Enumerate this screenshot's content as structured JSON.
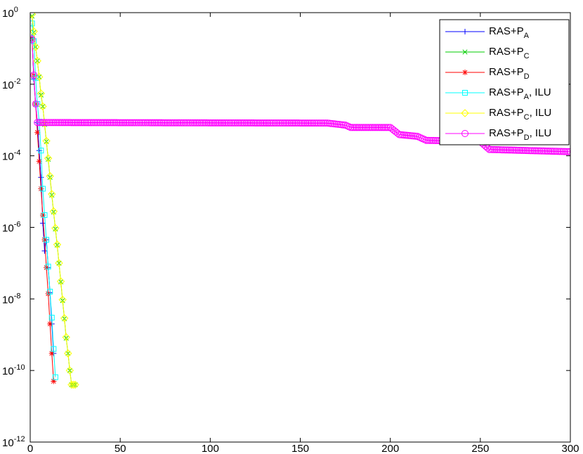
{
  "chart_data": {
    "type": "line",
    "title": "",
    "xlabel": "",
    "ylabel": "",
    "xlim": [
      0,
      300
    ],
    "ylim_exponent": [
      -12,
      0
    ],
    "y_scale": "log",
    "grid": false,
    "legend_position": "top-right",
    "x_ticks": [
      "0",
      "50",
      "100",
      "150",
      "200",
      "250",
      "300"
    ],
    "y_ticks": [
      {
        "base": "10",
        "exp": "0"
      },
      {
        "base": "10",
        "exp": "-2"
      },
      {
        "base": "10",
        "exp": "-4"
      },
      {
        "base": "10",
        "exp": "-6"
      },
      {
        "base": "10",
        "exp": "-8"
      },
      {
        "base": "10",
        "exp": "-10"
      },
      {
        "base": "10",
        "exp": "-12"
      }
    ],
    "series": [
      {
        "name": "RAS+P_A",
        "legend": {
          "main": "RAS+P",
          "sub": "A",
          "suffix": ""
        },
        "color": "#0000ff",
        "marker": "plus",
        "x": [
          1,
          2,
          3,
          4,
          5,
          6,
          7,
          8,
          9,
          10,
          11,
          12,
          13
        ],
        "y": [
          0.2,
          0.014,
          0.0028,
          0.00085,
          0.00014,
          2.5e-05,
          1.3e-06,
          2.2e-07,
          4.5e-07,
          7.5e-08,
          1.5e-08,
          2e-09,
          3e-10
        ]
      },
      {
        "name": "RAS+P_C",
        "legend": {
          "main": "RAS+P",
          "sub": "C",
          "suffix": ""
        },
        "color": "#00cc00",
        "marker": "x",
        "x": [
          1,
          2,
          3,
          4,
          5,
          6,
          7,
          8,
          9,
          10,
          11,
          12,
          13,
          14,
          15,
          16,
          17,
          18,
          19,
          20,
          21,
          22,
          23,
          24,
          25
        ],
        "y": [
          0.8,
          0.28,
          0.11,
          0.045,
          0.016,
          0.005,
          0.0024,
          0.00075,
          0.00025,
          8e-05,
          2.5e-05,
          8e-06,
          2.7e-06,
          9e-07,
          3.2e-07,
          1e-07,
          3e-08,
          9e-09,
          2.8e-09,
          8e-10,
          3e-10,
          1e-10,
          4e-11,
          4e-11,
          4e-11
        ]
      },
      {
        "name": "RAS+P_D",
        "legend": {
          "main": "RAS+P",
          "sub": "D",
          "suffix": ""
        },
        "color": "#ff0000",
        "marker": "star",
        "x": [
          1,
          2,
          3,
          4,
          5,
          6,
          7,
          8,
          9,
          10,
          11,
          12,
          13
        ],
        "y": [
          0.18,
          0.018,
          0.0028,
          0.00045,
          7e-05,
          1.2e-05,
          2.2e-06,
          4.5e-07,
          7.5e-08,
          1.4e-08,
          2e-09,
          3e-10,
          5e-11
        ]
      },
      {
        "name": "RAS+P_A, ILU",
        "legend": {
          "main": "RAS+P",
          "sub": "A",
          "suffix": ", ILU"
        },
        "color": "#00ffff",
        "marker": "square",
        "x": [
          1,
          2,
          3,
          4,
          5,
          6,
          7,
          8,
          9,
          10,
          11,
          12,
          13,
          14
        ],
        "y": [
          0.5,
          0.16,
          0.015,
          0.0028,
          0.0009,
          0.00014,
          1.2e-05,
          2.2e-06,
          4.5e-07,
          8e-08,
          1.6e-08,
          3e-09,
          4e-10,
          6.5e-11
        ]
      },
      {
        "name": "RAS+P_C, ILU",
        "legend": {
          "main": "RAS+P",
          "sub": "C",
          "suffix": ", ILU"
        },
        "color": "#ffff00",
        "marker": "diamond",
        "x": [
          1,
          2,
          3,
          4,
          5,
          6,
          7,
          8,
          9,
          10,
          11,
          12,
          13,
          14,
          15,
          16,
          17,
          18,
          19,
          20,
          21,
          22,
          23,
          24,
          25
        ],
        "y": [
          0.9,
          0.3,
          0.11,
          0.045,
          0.016,
          0.0055,
          0.0024,
          0.0008,
          0.00026,
          8.5e-05,
          2.7e-05,
          8.5e-06,
          2.8e-06,
          9.5e-07,
          3.3e-07,
          1e-07,
          3.1e-08,
          9.5e-09,
          2.9e-09,
          8.5e-10,
          3e-10,
          1e-10,
          4e-11,
          4e-11,
          4e-11
        ]
      },
      {
        "name": "RAS+P_D, ILU",
        "legend": {
          "main": "RAS+P",
          "sub": "D",
          "suffix": ", ILU"
        },
        "color": "#ff00ff",
        "marker": "circle",
        "x_range": [
          1,
          300
        ],
        "profile": [
          [
            1,
            0.18
          ],
          [
            2,
            0.018
          ],
          [
            3,
            0.0028
          ],
          [
            4,
            0.00085
          ],
          [
            165,
            0.00082
          ],
          [
            175,
            0.00072
          ],
          [
            178,
            0.00062
          ],
          [
            200,
            0.00062
          ],
          [
            205,
            0.00039
          ],
          [
            215,
            0.00035
          ],
          [
            220,
            0.00027
          ],
          [
            250,
            0.00025
          ],
          [
            255,
            0.00015
          ],
          [
            300,
            0.00013
          ]
        ]
      }
    ]
  }
}
